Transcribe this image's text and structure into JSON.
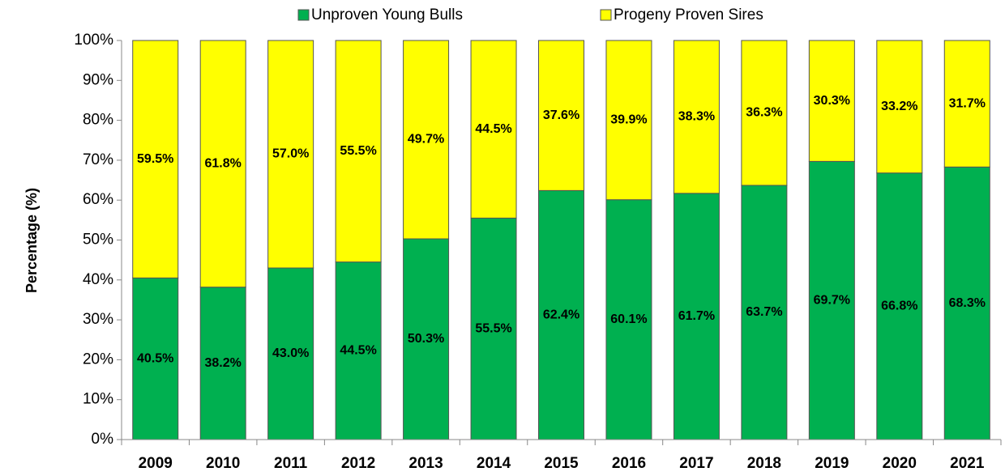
{
  "chart_data": {
    "type": "stacked_bar",
    "ylabel": "Percentage (%)",
    "categories": [
      "2009",
      "2010",
      "2011",
      "2012",
      "2013",
      "2014",
      "2015",
      "2016",
      "2017",
      "2018",
      "2019",
      "2020",
      "2021"
    ],
    "series": [
      {
        "name": "Unproven Young Bulls",
        "color": "#00b050",
        "values": [
          40.5,
          38.2,
          43.0,
          44.5,
          50.3,
          55.5,
          62.4,
          60.1,
          61.7,
          63.7,
          69.7,
          66.8,
          68.3
        ],
        "value_labels": [
          "40.5%",
          "38.2%",
          "43.0%",
          "44.5%",
          "50.3%",
          "55.5%",
          "62.4%",
          "60.1%",
          "61.7%",
          "63.7%",
          "69.7%",
          "66.8%",
          "68.3%"
        ]
      },
      {
        "name": "Progeny Proven Sires",
        "color": "#ffff00",
        "values": [
          59.5,
          61.8,
          57.0,
          55.5,
          49.7,
          44.5,
          37.6,
          39.9,
          38.3,
          36.3,
          30.3,
          33.2,
          31.7
        ],
        "value_labels": [
          "59.5%",
          "61.8%",
          "57.0%",
          "55.5%",
          "49.7%",
          "44.5%",
          "37.6%",
          "39.9%",
          "38.3%",
          "36.3%",
          "30.3%",
          "33.2%",
          "31.7%"
        ]
      }
    ],
    "ylim": [
      0,
      100
    ],
    "yticks": [
      {
        "value": 0,
        "label": "0%"
      },
      {
        "value": 10,
        "label": "10%"
      },
      {
        "value": 20,
        "label": "20%"
      },
      {
        "value": 30,
        "label": "30%"
      },
      {
        "value": 40,
        "label": "40%"
      },
      {
        "value": 50,
        "label": "50%"
      },
      {
        "value": 60,
        "label": "60%"
      },
      {
        "value": 70,
        "label": "70%"
      },
      {
        "value": 80,
        "label": "80%"
      },
      {
        "value": 90,
        "label": "90%"
      },
      {
        "value": 100,
        "label": "100%"
      }
    ],
    "legend": "top"
  }
}
